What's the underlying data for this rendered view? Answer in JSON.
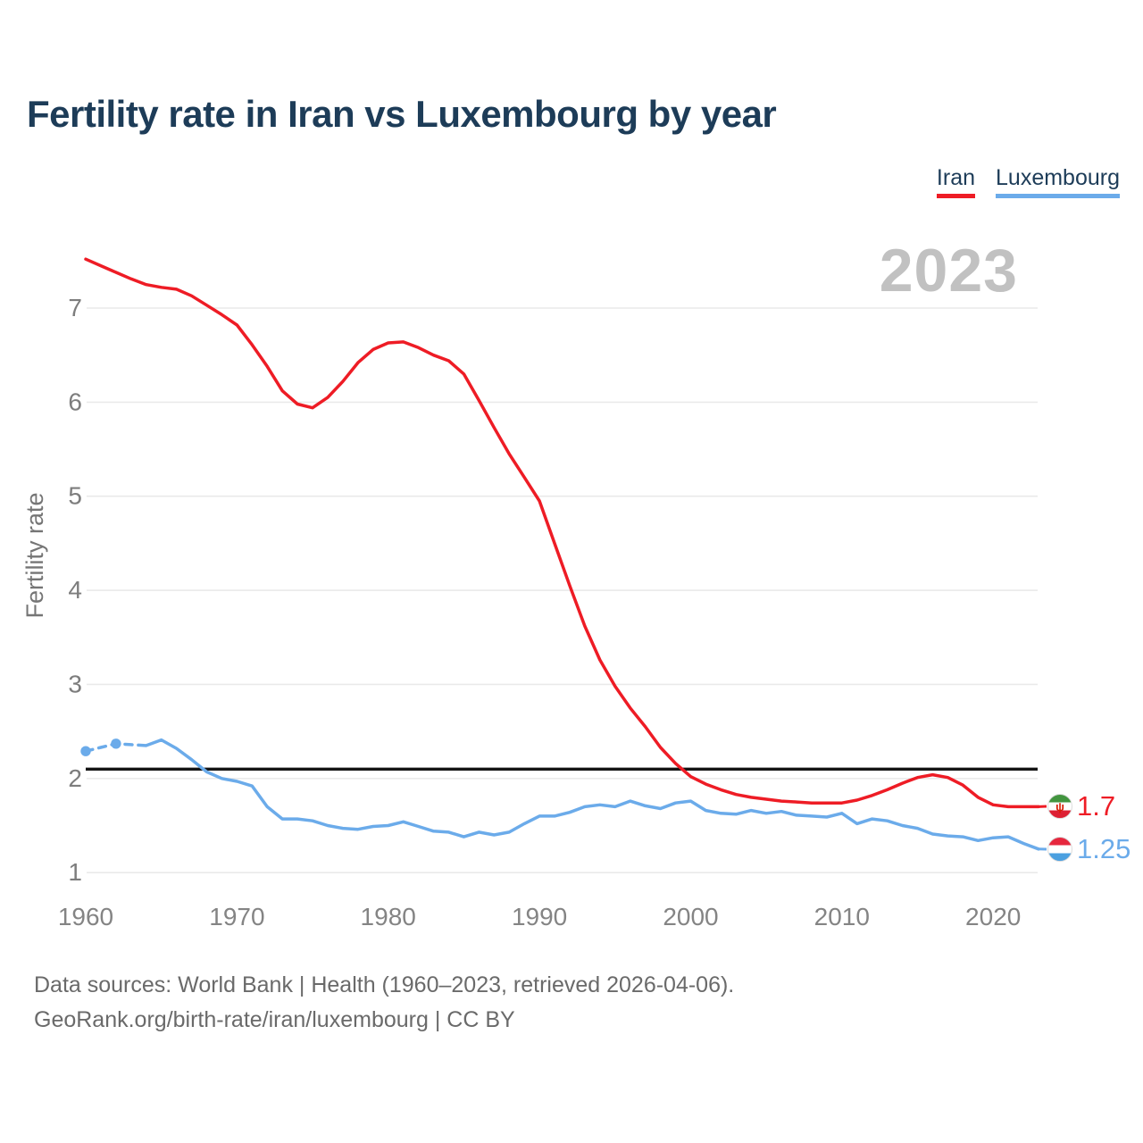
{
  "header": {
    "title": "Fertility rate in Iran vs Luxembourg by year"
  },
  "legend": [
    {
      "label": "Iran",
      "color": "#ee1c25"
    },
    {
      "label": "Luxembourg",
      "color": "#6babea"
    }
  ],
  "watermark": "2023",
  "chart_data": {
    "type": "line",
    "title": "Fertility rate in Iran vs Luxembourg by year",
    "xlabel": "",
    "ylabel": "Fertility rate",
    "xlim": [
      1960,
      2023
    ],
    "ylim": [
      1,
      7.6
    ],
    "x_ticks": [
      1960,
      1970,
      1980,
      1990,
      2000,
      2010,
      2020
    ],
    "y_ticks": [
      1,
      2,
      3,
      4,
      5,
      6,
      7
    ],
    "grid": "horizontal",
    "legend_position": "top-right",
    "reference_line_value": 2.1,
    "reference_line_color": "#141414",
    "series": [
      {
        "name": "Iran",
        "color": "#ee1c25",
        "start_year": 1960,
        "end_label": "1.7",
        "flag": "iran",
        "values": [
          7.52,
          7.45,
          7.38,
          7.31,
          7.25,
          7.22,
          7.2,
          7.13,
          7.03,
          6.93,
          6.82,
          6.61,
          6.38,
          6.12,
          5.98,
          5.94,
          6.05,
          6.22,
          6.42,
          6.56,
          6.63,
          6.64,
          6.58,
          6.5,
          6.44,
          6.3,
          6.02,
          5.73,
          5.45,
          5.2,
          4.95,
          4.5,
          4.05,
          3.62,
          3.26,
          2.98,
          2.75,
          2.55,
          2.33,
          2.16,
          2.02,
          1.94,
          1.88,
          1.83,
          1.8,
          1.78,
          1.76,
          1.75,
          1.74,
          1.74,
          1.74,
          1.77,
          1.82,
          1.88,
          1.95,
          2.01,
          2.04,
          2.01,
          1.93,
          1.8,
          1.72,
          1.7,
          1.7,
          1.7
        ]
      },
      {
        "name": "Luxembourg",
        "color": "#6babea",
        "start_year": 1960,
        "end_label": "1.25",
        "flag": "luxembourg",
        "dashed_until_year": 1964,
        "marker_years": [
          1960,
          1962
        ],
        "values": [
          2.29,
          2.33,
          2.37,
          2.36,
          2.35,
          2.41,
          2.32,
          2.2,
          2.07,
          2.0,
          1.97,
          1.92,
          1.7,
          1.57,
          1.57,
          1.55,
          1.5,
          1.47,
          1.46,
          1.49,
          1.5,
          1.54,
          1.49,
          1.44,
          1.43,
          1.38,
          1.43,
          1.4,
          1.43,
          1.52,
          1.6,
          1.6,
          1.64,
          1.7,
          1.72,
          1.7,
          1.76,
          1.71,
          1.68,
          1.74,
          1.76,
          1.66,
          1.63,
          1.62,
          1.66,
          1.63,
          1.65,
          1.61,
          1.6,
          1.59,
          1.63,
          1.52,
          1.57,
          1.55,
          1.5,
          1.47,
          1.41,
          1.39,
          1.38,
          1.34,
          1.37,
          1.38,
          1.31,
          1.25
        ]
      }
    ],
    "flags": {
      "iran": {
        "bands": [
          "#42953f",
          "#ffffff",
          "#dd2033"
        ],
        "emblem_color": "#d81e05",
        "emblem_glyph": "ψ"
      },
      "luxembourg": {
        "bands": [
          "#e6273e",
          "#ffffff",
          "#4ba0e0"
        ]
      }
    },
    "axis_text_color": "#7d7d7d",
    "gridline_color": "#eaeaea"
  },
  "footer": {
    "line1": "Data sources: World Bank | Health (1960–2023, retrieved 2026-04-06).",
    "line2": "GeoRank.org/birth-rate/iran/luxembourg | CC BY"
  }
}
